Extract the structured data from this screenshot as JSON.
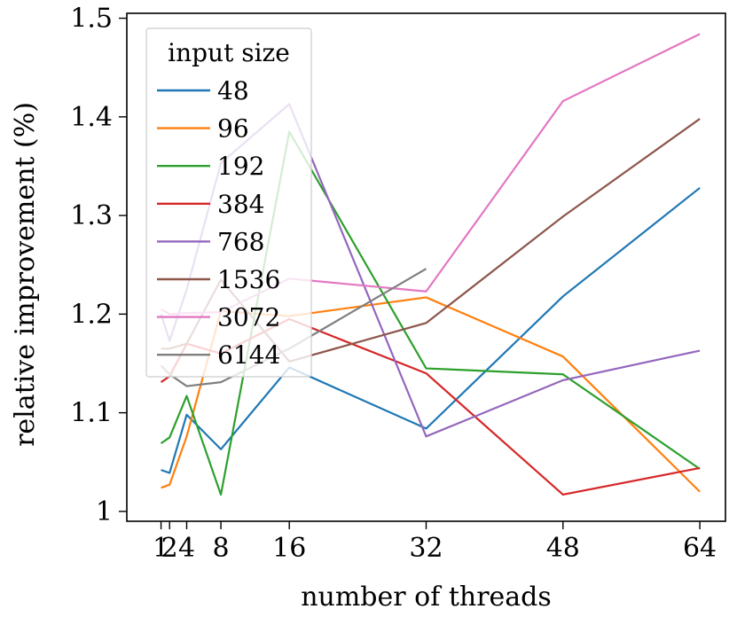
{
  "chart_data": {
    "type": "line",
    "xlabel": "number of threads",
    "ylabel": "relative improvement (%)",
    "xlim": [
      -3,
      67
    ],
    "ylim": [
      0.99,
      1.505
    ],
    "x_ticks": [
      1,
      2,
      4,
      8,
      16,
      32,
      48,
      64
    ],
    "x_tick_labels": [
      "1",
      "2",
      "4",
      "8",
      "16",
      "32",
      "48",
      "64"
    ],
    "y_ticks": [
      1.0,
      1.1,
      1.2,
      1.3,
      1.4,
      1.5
    ],
    "y_tick_labels": [
      "1",
      "1.1",
      "1.2",
      "1.3",
      "1.4",
      "1.5"
    ],
    "grid": false,
    "legend": {
      "title": "input size",
      "placement": "top-left"
    },
    "x": [
      1,
      2,
      4,
      8,
      16,
      32,
      48,
      64
    ],
    "series": [
      {
        "name": "48",
        "color": "#1f77b4",
        "values": [
          1.042,
          1.039,
          1.098,
          1.063,
          1.146,
          1.084,
          1.218,
          1.328
        ]
      },
      {
        "name": "96",
        "color": "#ff7f0e",
        "values": [
          1.024,
          1.027,
          1.076,
          1.203,
          1.198,
          1.217,
          1.157,
          1.02
        ]
      },
      {
        "name": "192",
        "color": "#2ca02c",
        "values": [
          1.069,
          1.075,
          1.117,
          1.017,
          1.385,
          1.145,
          1.139,
          1.043
        ]
      },
      {
        "name": "384",
        "color": "#d62728",
        "values": [
          1.131,
          1.137,
          1.17,
          1.16,
          1.195,
          1.14,
          1.017,
          1.044
        ]
      },
      {
        "name": "768",
        "color": "#9467bd",
        "values": [
          1.2,
          1.173,
          1.225,
          1.353,
          1.413,
          1.076,
          1.133,
          1.163
        ]
      },
      {
        "name": "1536",
        "color": "#8c564b",
        "values": [
          1.165,
          1.165,
          1.17,
          1.235,
          1.152,
          1.191,
          1.299,
          1.398
        ]
      },
      {
        "name": "3072",
        "color": "#e377c2",
        "values": [
          1.205,
          1.2,
          1.201,
          1.202,
          1.236,
          1.223,
          1.416,
          1.484
        ]
      },
      {
        "name": "6144",
        "color": "#7f7f7f",
        "values": [
          1.148,
          1.139,
          1.127,
          1.131,
          1.165,
          1.246,
          null,
          null
        ]
      }
    ]
  }
}
